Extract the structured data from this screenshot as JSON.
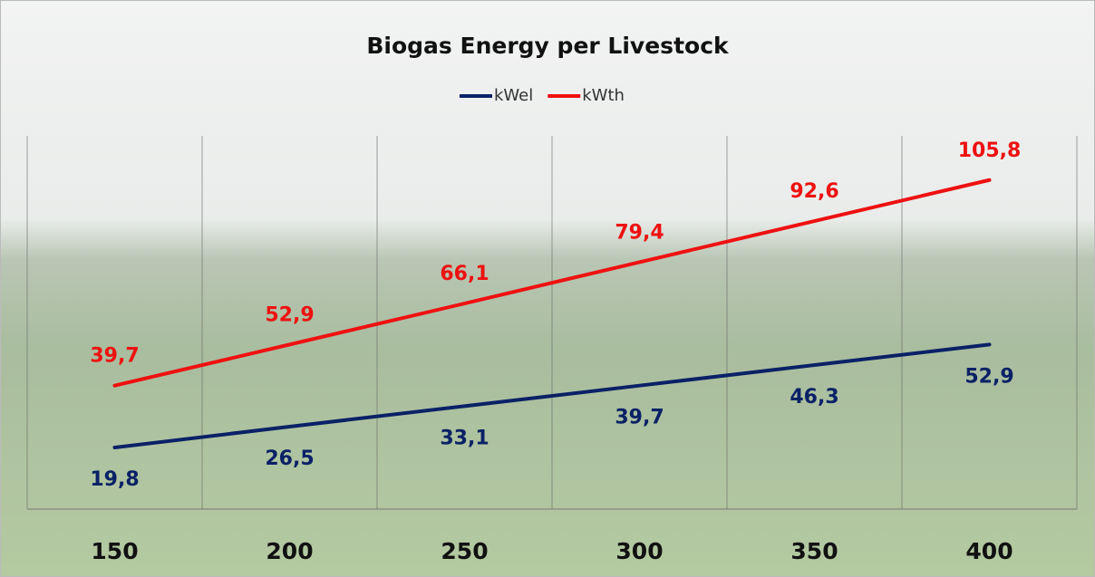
{
  "chart_data": {
    "type": "line",
    "title": "Biogas Energy per Livestock",
    "categories": [
      "150",
      "200",
      "250",
      "300",
      "350",
      "400"
    ],
    "series": [
      {
        "name": "kWel",
        "color": "#0b2166",
        "values": [
          19.8,
          26.5,
          33.1,
          39.7,
          46.3,
          52.9
        ],
        "value_labels": [
          "19,8",
          "26,5",
          "33,1",
          "39,7",
          "46,3",
          "52,9"
        ]
      },
      {
        "name": "kWth",
        "color": "#ee1111",
        "values": [
          39.7,
          52.9,
          66.1,
          79.4,
          92.6,
          105.8
        ],
        "value_labels": [
          "39,7",
          "52,9",
          "66,1",
          "79,4",
          "92,6",
          "105,8"
        ]
      }
    ],
    "ylim": [
      0,
      120
    ],
    "grid": true,
    "legend": "top"
  }
}
